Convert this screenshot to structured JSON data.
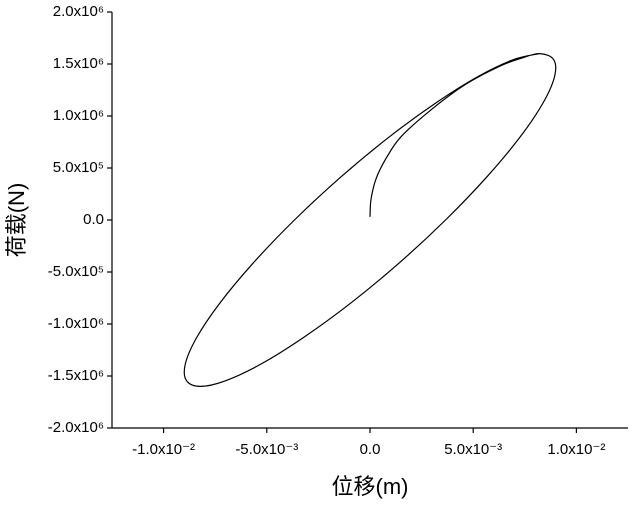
{
  "chart_data": {
    "type": "line",
    "x_label": "位移(m)",
    "y_label": "荷载(N)",
    "xlim": [
      -0.0125,
      0.0125
    ],
    "ylim": [
      -2000000,
      2000000
    ],
    "xticks": [
      {
        "value": -0.01,
        "label": "-1.0x10⁻²"
      },
      {
        "value": -0.005,
        "label": "-5.0x10⁻³"
      },
      {
        "value": 0,
        "label": "0.0"
      },
      {
        "value": 0.005,
        "label": "5.0x10⁻³"
      },
      {
        "value": 0.01,
        "label": "1.0x10⁻²"
      }
    ],
    "yticks": [
      {
        "value": -2000000,
        "label": "-2.0x10⁶"
      },
      {
        "value": -1500000,
        "label": "-1.5x10⁶"
      },
      {
        "value": -1000000,
        "label": "-1.0x10⁶"
      },
      {
        "value": -500000,
        "label": "-5.0x10⁵"
      },
      {
        "value": 0,
        "label": "0.0"
      },
      {
        "value": 500000,
        "label": "5.0x10⁵"
      },
      {
        "value": 1000000,
        "label": "1.0x10⁶"
      },
      {
        "value": 1500000,
        "label": "1.5x10⁶"
      },
      {
        "value": 2000000,
        "label": "2.0x10⁶"
      }
    ],
    "x": [
      0,
      5e-05,
      0.0003,
      0.0008,
      0.0015,
      0.0029,
      0.0046,
      0.0063,
      0.0074,
      0.00822,
      0.00889,
      0.00895,
      0.0084,
      0.00728,
      0.00566,
      0.00366,
      0.00141,
      -0.00094,
      -0.00323,
      -0.00529,
      -0.00699,
      -0.00822,
      -0.00889,
      -0.00895,
      -0.0084,
      -0.00728,
      -0.00566,
      -0.00366,
      -0.00141,
      0.00094,
      0.00323,
      0.00529,
      0.00699,
      0.00822
    ],
    "series": [
      {
        "color": "#000000",
        "values": [
          30000,
          200000,
          400000,
          600000,
          800000,
          1050000,
          1300000,
          1480000,
          1560000,
          1600000,
          1545000,
          1386000,
          1131000,
          800000,
          414000,
          0,
          -414000,
          -800000,
          -1131000,
          -1386000,
          -1545000,
          -1600000,
          -1545000,
          -1386000,
          -1131000,
          -800000,
          -414000,
          0,
          414000,
          800000,
          1131000,
          1386000,
          1545000,
          1600000
        ]
      }
    ]
  }
}
